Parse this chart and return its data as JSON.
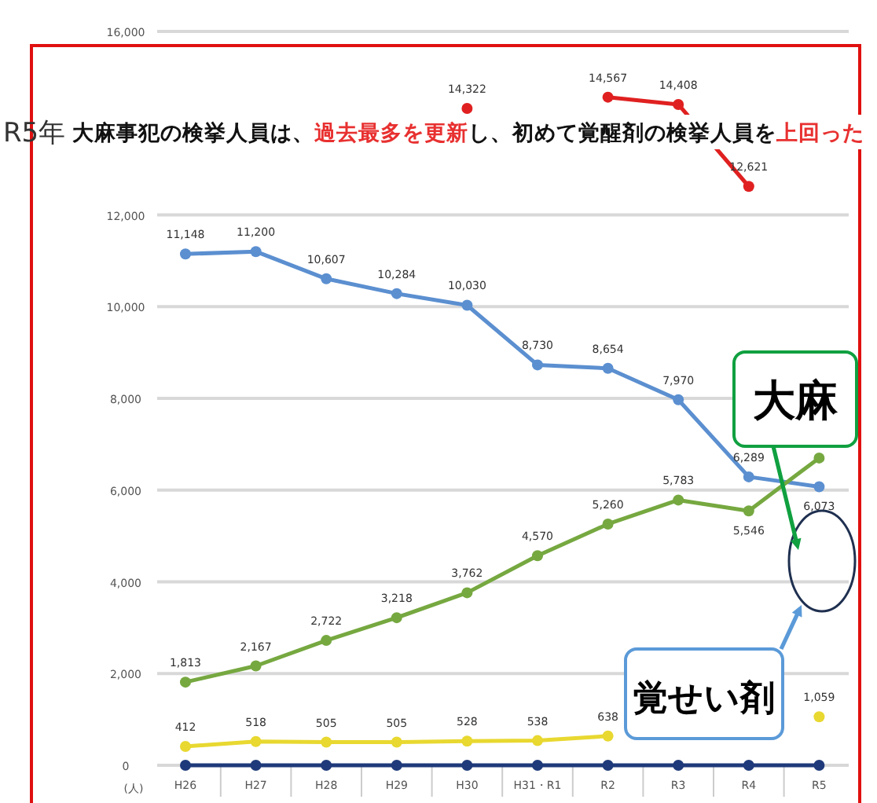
{
  "chart_data": {
    "type": "line",
    "ylabel": "(人)",
    "annotations": [
      "R5年",
      "大麻事犯の検挙人員は、**過去最多を更新**し、初めて覚醒剤の検挙人員を**上回った**"
    ],
    "categories": [
      "H26",
      "H27",
      "H28",
      "H29",
      "H30",
      "H31・R1",
      "R2",
      "R3",
      "R4",
      "R5"
    ],
    "ylim": [
      0,
      16000
    ],
    "yticks": [
      0,
      {
        "value": 2000,
        "label": "2,000"
      },
      {
        "value": 4000,
        "label": "4,000"
      },
      {
        "value": 6000,
        "label": "6,000"
      },
      {
        "value": 8000,
        "label": "8,000"
      },
      {
        "value": 10000,
        "label": "10,000"
      },
      {
        "value": 12000,
        "label": "12,000"
      },
      {
        "value": 16000,
        "label": "16,000"
      }
    ],
    "grid": "y",
    "legend": "right",
    "marker": "circle",
    "series": [
      {
        "color": "#e02020",
        "values": [
          null,
          null,
          null,
          null,
          14322,
          null,
          14567,
          14408,
          12621,
          null
        ],
        "value_labels": [
          null,
          null,
          null,
          null,
          "14,322",
          null,
          "14,567",
          "14,408",
          "12,621",
          null
        ]
      },
      {
        "name": "覚せい剤",
        "color": "#5b8fd0",
        "values": [
          11148,
          11200,
          10607,
          10284,
          10030,
          8730,
          8654,
          7970,
          6289,
          6073
        ],
        "value_labels": [
          "11,148",
          "11,200",
          "10,607",
          "10,284",
          "10,030",
          "8,730",
          "8,654",
          "7,970",
          "6,289",
          "6,073"
        ]
      },
      {
        "name": "大麻",
        "color": "#76a840",
        "values": [
          1813,
          2167,
          2722,
          3218,
          3762,
          4570,
          5260,
          5783,
          5546,
          6700
        ],
        "value_labels": [
          "1,813",
          "2,167",
          "2,722",
          "3,218",
          "3,762",
          "4,570",
          "5,260",
          "5,783",
          "5,546",
          null
        ]
      },
      {
        "color": "#e8d830",
        "values": [
          412,
          518,
          505,
          505,
          528,
          538,
          638,
          null,
          null,
          1059
        ],
        "value_labels": [
          "412",
          "518",
          "505",
          "505",
          "528",
          "538",
          "638",
          null,
          null,
          "1,059"
        ]
      },
      {
        "color": "#1f3a7a",
        "values": [
          0,
          0,
          0,
          0,
          0,
          0,
          0,
          0,
          0,
          0
        ]
      }
    ]
  }
}
